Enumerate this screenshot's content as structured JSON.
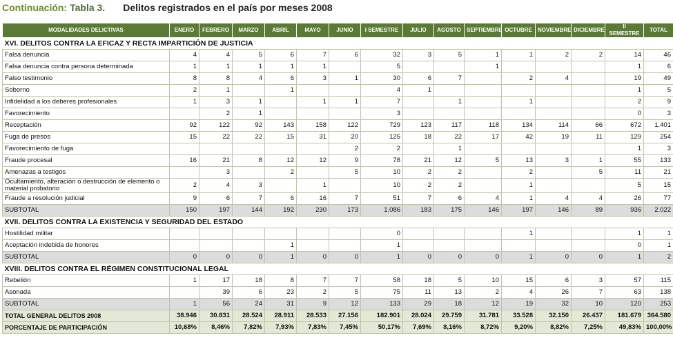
{
  "title": {
    "prefix": "Continuación:",
    "table": "Tabla 3.",
    "text": "Delitos registrados en el país por meses 2008"
  },
  "table": {
    "columns": [
      "MODALIDADES DELICTIVAS",
      "ENERO",
      "FEBRERO",
      "MARZO",
      "ABRIL",
      "MAYO",
      "JUNIO",
      "I SEMESTRE",
      "JULIO",
      "AGOSTO",
      "SEPTIEMBRE",
      "OCTUBRE",
      "NOVIEMBRE",
      "DICIEMBRE",
      "II SEMESTRE",
      "TOTAL"
    ],
    "sections": [
      {
        "title": "XVI. DELITOS CONTRA LA EFICAZ Y RECTA IMPARTICIÓN DE JUSTICIA",
        "rows": [
          {
            "label": "Falsa denuncia",
            "cells": [
              "4",
              "4",
              "5",
              "6",
              "7",
              "6",
              "32",
              "3",
              "5",
              "1",
              "1",
              "2",
              "2",
              "14",
              "46"
            ]
          },
          {
            "label": "Falsa denuncia contra persona determinada",
            "cells": [
              "1",
              "1",
              "1",
              "1",
              "1",
              null,
              "5",
              null,
              null,
              "1",
              null,
              null,
              null,
              "1",
              "6"
            ]
          },
          {
            "label": "Falso testimonio",
            "cells": [
              "8",
              "8",
              "4",
              "6",
              "3",
              "1",
              "30",
              "6",
              "7",
              null,
              "2",
              "4",
              null,
              "19",
              "49"
            ]
          },
          {
            "label": "Soborno",
            "cells": [
              "2",
              "1",
              null,
              "1",
              null,
              null,
              "4",
              "1",
              null,
              null,
              null,
              null,
              null,
              "1",
              "5"
            ]
          },
          {
            "label": "Infidelidad a los deberes profesionales",
            "cells": [
              "1",
              "3",
              "1",
              null,
              "1",
              "1",
              "7",
              null,
              "1",
              null,
              "1",
              null,
              null,
              "2",
              "9"
            ]
          },
          {
            "label": "Favorecimiento",
            "cells": [
              null,
              "2",
              "1",
              null,
              null,
              null,
              "3",
              null,
              null,
              null,
              null,
              null,
              null,
              "0",
              "3"
            ]
          },
          {
            "label": "Receptación",
            "cells": [
              "92",
              "122",
              "92",
              "143",
              "158",
              "122",
              "729",
              "123",
              "117",
              "118",
              "134",
              "114",
              "66",
              "672",
              "1.401"
            ]
          },
          {
            "label": "Fuga de presos",
            "cells": [
              "15",
              "22",
              "22",
              "15",
              "31",
              "20",
              "125",
              "18",
              "22",
              "17",
              "42",
              "19",
              "11",
              "129",
              "254"
            ]
          },
          {
            "label": "Favorecimiento de fuga",
            "cells": [
              null,
              null,
              null,
              null,
              null,
              "2",
              "2",
              null,
              "1",
              null,
              null,
              null,
              null,
              "1",
              "3"
            ]
          },
          {
            "label": "Fraude procesal",
            "cells": [
              "16",
              "21",
              "8",
              "12",
              "12",
              "9",
              "78",
              "21",
              "12",
              "5",
              "13",
              "3",
              "1",
              "55",
              "133"
            ]
          },
          {
            "label": "Amenazas a testigos",
            "cells": [
              null,
              "3",
              null,
              "2",
              null,
              "5",
              "10",
              "2",
              "2",
              null,
              "2",
              null,
              "5",
              "11",
              "21"
            ]
          },
          {
            "label": "Ocultamiento, alteración o destrucción de elemento o material probatorio",
            "cells": [
              "2",
              "4",
              "3",
              null,
              "1",
              null,
              "10",
              "2",
              "2",
              null,
              "1",
              null,
              null,
              "5",
              "15"
            ]
          },
          {
            "label": "Fraude a resolución judicial",
            "cells": [
              "9",
              "6",
              "7",
              "6",
              "16",
              "7",
              "51",
              "7",
              "6",
              "4",
              "1",
              "4",
              "4",
              "26",
              "77"
            ]
          }
        ],
        "subtotal": {
          "label": "SUBTOTAL",
          "cells": [
            "150",
            "197",
            "144",
            "192",
            "230",
            "173",
            "1.086",
            "183",
            "175",
            "146",
            "197",
            "146",
            "89",
            "936",
            "2.022"
          ]
        }
      },
      {
        "title": "XVII. DELITOS CONTRA LA EXISTENCIA Y SEGURIDAD DEL ESTADO",
        "rows": [
          {
            "label": "Hostilidad militar",
            "cells": [
              null,
              null,
              null,
              null,
              null,
              null,
              "0",
              null,
              null,
              null,
              "1",
              null,
              null,
              "1",
              "1"
            ]
          },
          {
            "label": "Aceptación indebida de honores",
            "cells": [
              null,
              null,
              null,
              "1",
              null,
              null,
              "1",
              null,
              null,
              null,
              null,
              null,
              null,
              "0",
              "1"
            ]
          }
        ],
        "subtotal": {
          "label": "SUBTOTAL",
          "cells": [
            "0",
            "0",
            "0",
            "1",
            "0",
            "0",
            "1",
            "0",
            "0",
            "0",
            "1",
            "0",
            "0",
            "1",
            "2"
          ]
        }
      },
      {
        "title": "XVIII. DELITOS CONTRA EL RÉGIMEN CONSTITUCIONAL LEGAL",
        "rows": [
          {
            "label": "Rebelión",
            "cells": [
              "1",
              "17",
              "18",
              "8",
              "7",
              "7",
              "58",
              "18",
              "5",
              "10",
              "15",
              "6",
              "3",
              "57",
              "115"
            ]
          },
          {
            "label": "Asonada",
            "cells": [
              null,
              "39",
              "6",
              "23",
              "2",
              "5",
              "75",
              "11",
              "13",
              "2",
              "4",
              "26",
              "7",
              "63",
              "138"
            ]
          }
        ],
        "subtotal": {
          "label": "SUBTOTAL",
          "cells": [
            "1",
            "56",
            "24",
            "31",
            "9",
            "12",
            "133",
            "29",
            "18",
            "12",
            "19",
            "32",
            "10",
            "120",
            "253"
          ]
        }
      }
    ],
    "totals": [
      {
        "label": "TOTAL GENERAL DELITOS 2008",
        "cells": [
          "38.946",
          "30.831",
          "28.524",
          "28.911",
          "28.533",
          "27.156",
          "182.901",
          "28.024",
          "29.759",
          "31.781",
          "33.528",
          "32.150",
          "26.437",
          "181.679",
          "364.580"
        ]
      },
      {
        "label": "PORCENTAJE DE PARTICIPACIÓN",
        "cells": [
          "10,68%",
          "8,46%",
          "7,82%",
          "7,93%",
          "7,83%",
          "7,45%",
          "50,17%",
          "7,69%",
          "8,16%",
          "8,72%",
          "9,20%",
          "8,82%",
          "7,25%",
          "49,83%",
          "100,00%"
        ]
      }
    ]
  }
}
